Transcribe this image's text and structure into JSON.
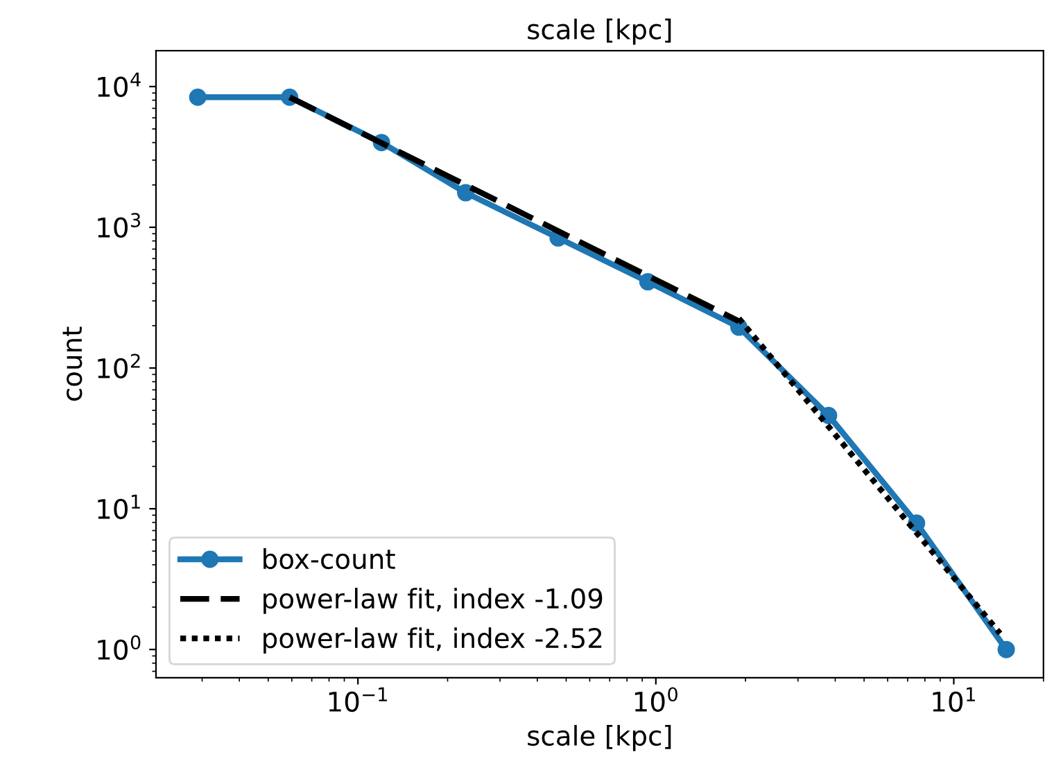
{
  "chart_data": {
    "type": "line",
    "title": "scale [kpc]",
    "xlabel": "scale [kpc]",
    "ylabel": "count",
    "log": "xy",
    "xlim": [
      0.021,
      20
    ],
    "ylim": [
      0.63,
      18000
    ],
    "xticks": [
      {
        "value": 0.1,
        "label": "10$^{−1}$"
      },
      {
        "value": 1,
        "label": "10$^{0}$"
      },
      {
        "value": 10,
        "label": "10$^{1}$"
      }
    ],
    "yticks": [
      {
        "value": 1,
        "label": "10$^{0}$"
      },
      {
        "value": 10,
        "label": "10$^{1}$"
      },
      {
        "value": 100,
        "label": "10$^{2}$"
      },
      {
        "value": 1000,
        "label": "10$^{3}$"
      },
      {
        "value": 10000,
        "label": "10$^{4}$"
      }
    ],
    "grid": false,
    "legend": "bottom left",
    "series": [
      {
        "name": "box-count",
        "color": "#1f77b4",
        "marker": "circle",
        "line_style": "solid",
        "x": [
          0.029,
          0.059,
          0.12,
          0.23,
          0.47,
          0.94,
          1.9,
          3.8,
          7.5,
          15
        ],
        "values": [
          8400,
          8400,
          4000,
          1760,
          840,
          410,
          195,
          46,
          7.9,
          1
        ]
      },
      {
        "name": "power-law fit, index -1.09",
        "color": "#000000",
        "marker": "none",
        "line_style": "dashed",
        "x": [
          0.059,
          1.9
        ],
        "values": [
          8400,
          215
        ]
      },
      {
        "name": "power-law fit, index -2.52",
        "color": "#000000",
        "marker": "none",
        "line_style": "dotted",
        "x": [
          1.9,
          14.3
        ],
        "values": [
          225,
          1.3
        ]
      }
    ]
  }
}
